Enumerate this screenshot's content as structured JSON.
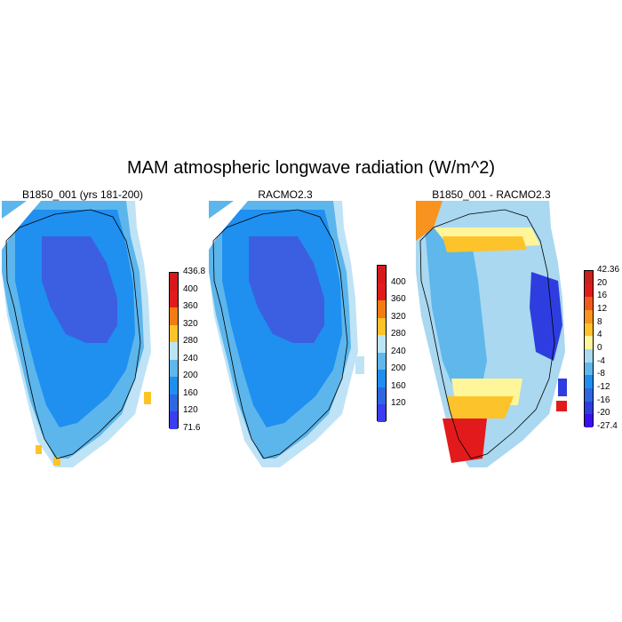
{
  "figure": {
    "title": "MAM atmospheric longwave radiation (W/m^2)"
  },
  "panels": [
    {
      "title": "B1850_001 (yrs 181-200)",
      "colorbar": {
        "labels": [
          "436.8",
          "400",
          "360",
          "320",
          "280",
          "240",
          "200",
          "160",
          "120",
          "71.6"
        ],
        "colors": [
          "#d7191c",
          "#e31a1c",
          "#f07c12",
          "#fdc32a",
          "#bde4f5",
          "#5fb7ec",
          "#1e8fef",
          "#2f66e1",
          "#3b3df0"
        ]
      }
    },
    {
      "title": "RACMO2.3",
      "colorbar": {
        "labels": [
          "400",
          "360",
          "320",
          "280",
          "240",
          "200",
          "160",
          "120"
        ],
        "colors": [
          "#d7191c",
          "#e31a1c",
          "#f07c12",
          "#fdc32a",
          "#bde4f5",
          "#5fb7ec",
          "#1e8fef",
          "#2f66e1",
          "#3b3df0"
        ]
      }
    },
    {
      "title": "B1850_001 - RACMO2.3",
      "colorbar": {
        "labels": [
          "42.36",
          "20",
          "16",
          "12",
          "8",
          "4",
          "0",
          "-4",
          "-8",
          "-12",
          "-16",
          "-20",
          "-27.4"
        ],
        "colors": [
          "#c8201c",
          "#e31a1c",
          "#f05a1c",
          "#f7931e",
          "#fdc32a",
          "#fff59a",
          "#a9d8f0",
          "#5fb7ec",
          "#1e8fef",
          "#2f66e1",
          "#2e3de0",
          "#3b10f0"
        ]
      }
    }
  ],
  "palette": {
    "ice_interior": "#3b5fe0",
    "ice_mid": "#1f8ff0",
    "ice_edge": "#5cb6ec",
    "coast_light": "#bfe3f6",
    "warm": "#fdc32a",
    "hot": "#e31a1c"
  }
}
